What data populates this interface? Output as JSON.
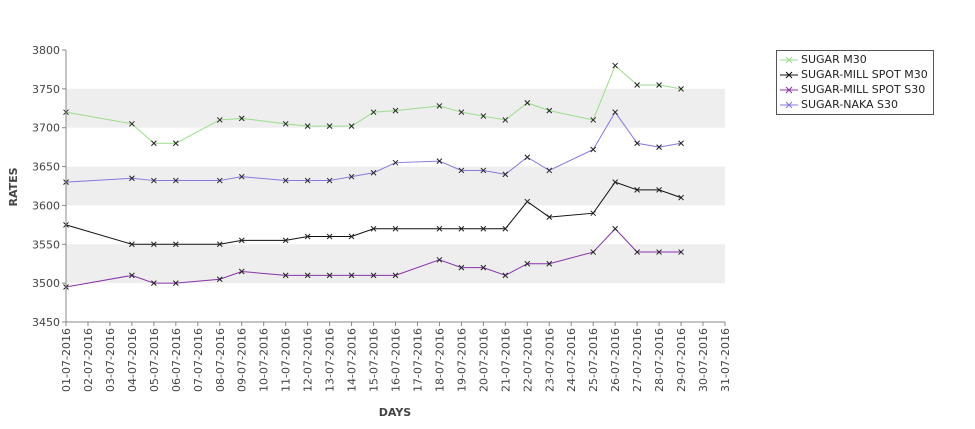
{
  "chart_data": {
    "type": "line",
    "title": "",
    "xlabel": "DAYS",
    "ylabel": "RATES",
    "ylim": [
      3450,
      3800
    ],
    "yticks": [
      3450,
      3500,
      3550,
      3600,
      3650,
      3700,
      3750,
      3800
    ],
    "x_tick_labels": [
      "01-07-2016",
      "02-07-2016",
      "03-07-2016",
      "04-07-2016",
      "05-07-2016",
      "06-07-2016",
      "07-07-2016",
      "08-07-2016",
      "09-07-2016",
      "10-07-2016",
      "11-07-2016",
      "12-07-2016",
      "13-07-2016",
      "14-07-2016",
      "15-07-2016",
      "16-07-2016",
      "17-07-2016",
      "18-07-2016",
      "19-07-2016",
      "20-07-2016",
      "21-07-2016",
      "22-07-2016",
      "23-07-2016",
      "24-07-2016",
      "25-07-2016",
      "26-07-2016",
      "27-07-2016",
      "28-07-2016",
      "29-07-2016",
      "30-07-2016",
      "31-07-2016"
    ],
    "x": [
      "01-07-2016",
      "04-07-2016",
      "05-07-2016",
      "06-07-2016",
      "08-07-2016",
      "09-07-2016",
      "11-07-2016",
      "12-07-2016",
      "13-07-2016",
      "14-07-2016",
      "15-07-2016",
      "16-07-2016",
      "18-07-2016",
      "19-07-2016",
      "20-07-2016",
      "21-07-2016",
      "22-07-2016",
      "23-07-2016",
      "25-07-2016",
      "26-07-2016",
      "27-07-2016",
      "28-07-2016",
      "29-07-2016"
    ],
    "grid": "alternating horizontal bands",
    "legend_position": "top-right",
    "series": [
      {
        "name": "SUGAR M30",
        "color": "#99dd88",
        "values": [
          3720,
          3705,
          3680,
          3680,
          3710,
          3712,
          3705,
          3702,
          3702,
          3702,
          3720,
          3722,
          3728,
          3720,
          3715,
          3710,
          3732,
          3722,
          3710,
          3780,
          3755,
          3755,
          3750
        ]
      },
      {
        "name": "SUGAR-MILL SPOT M30",
        "color": "#111111",
        "values": [
          3575,
          3550,
          3550,
          3550,
          3550,
          3555,
          3555,
          3560,
          3560,
          3560,
          3570,
          3570,
          3570,
          3570,
          3570,
          3570,
          3605,
          3585,
          3590,
          3630,
          3620,
          3620,
          3610
        ]
      },
      {
        "name": "SUGAR-MILL SPOT S30",
        "color": "#8833aa",
        "values": [
          3495,
          3510,
          3500,
          3500,
          3505,
          3515,
          3510,
          3510,
          3510,
          3510,
          3510,
          3510,
          3530,
          3520,
          3520,
          3510,
          3525,
          3525,
          3540,
          3570,
          3540,
          3540,
          3540
        ]
      },
      {
        "name": "SUGAR-NAKA S30",
        "color": "#8877dd",
        "values": [
          3630,
          3635,
          3632,
          3632,
          3632,
          3637,
          3632,
          3632,
          3632,
          3637,
          3642,
          3655,
          3657,
          3645,
          3645,
          3640,
          3662,
          3645,
          3672,
          3720,
          3680,
          3675,
          3680
        ]
      }
    ]
  }
}
